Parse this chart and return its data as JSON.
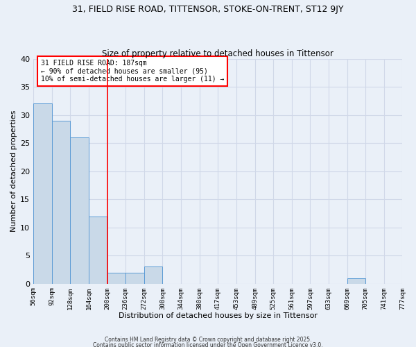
{
  "title1": "31, FIELD RISE ROAD, TITTENSOR, STOKE-ON-TRENT, ST12 9JY",
  "title2": "Size of property relative to detached houses in Tittensor",
  "xlabel": "Distribution of detached houses by size in Tittensor",
  "ylabel": "Number of detached properties",
  "bin_edges": [
    56,
    92,
    128,
    164,
    200,
    236,
    272,
    308,
    344,
    380,
    417,
    453,
    489,
    525,
    561,
    597,
    633,
    669,
    705,
    741,
    777
  ],
  "bin_labels": [
    "56sqm",
    "92sqm",
    "128sqm",
    "164sqm",
    "200sqm",
    "236sqm",
    "272sqm",
    "308sqm",
    "344sqm",
    "380sqm",
    "417sqm",
    "453sqm",
    "489sqm",
    "525sqm",
    "561sqm",
    "597sqm",
    "633sqm",
    "669sqm",
    "705sqm",
    "741sqm",
    "777sqm"
  ],
  "bar_values": [
    32,
    29,
    26,
    12,
    2,
    2,
    3,
    0,
    0,
    0,
    0,
    0,
    0,
    0,
    0,
    0,
    0,
    1,
    0,
    0
  ],
  "bar_color": "#c9d9e8",
  "bar_edgecolor": "#5b9bd5",
  "red_line_bin_index": 4,
  "annotation_line1": "31 FIELD RISE ROAD: 187sqm",
  "annotation_line2": "← 90% of detached houses are smaller (95)",
  "annotation_line3": "10% of semi-detached houses are larger (11) →",
  "annotation_box_color": "white",
  "annotation_box_edgecolor": "red",
  "ylim": [
    0,
    40
  ],
  "yticks": [
    0,
    5,
    10,
    15,
    20,
    25,
    30,
    35,
    40
  ],
  "grid_color": "#d0d8e8",
  "background_color": "#eaf0f8",
  "footer_text1": "Contains HM Land Registry data © Crown copyright and database right 2025.",
  "footer_text2": "Contains public sector information licensed under the Open Government Licence v3.0."
}
